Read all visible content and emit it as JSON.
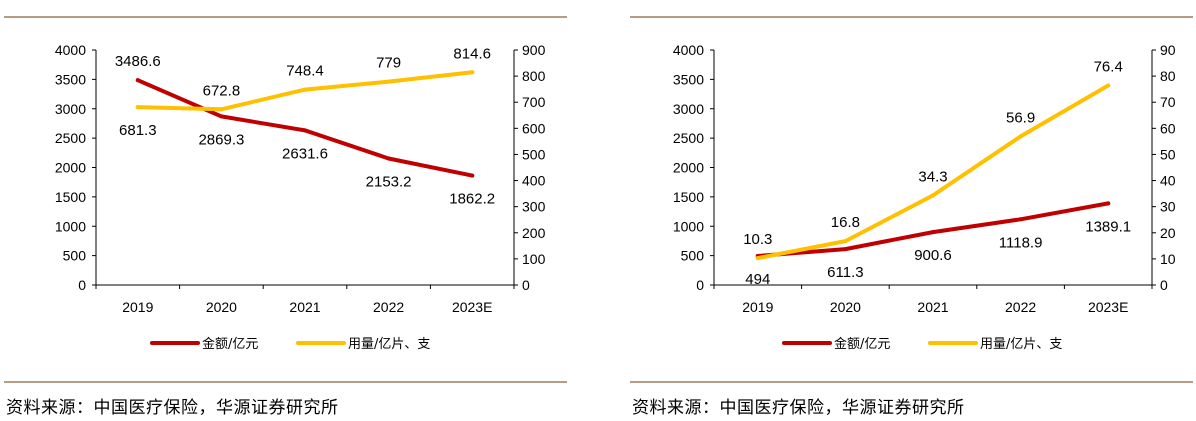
{
  "charts": [
    {
      "source": "资料来源：中国医疗保险，华源证券研究所",
      "chart_data": {
        "type": "line",
        "categories": [
          "2019",
          "2020",
          "2021",
          "2022",
          "2023E"
        ],
        "y_left_ticks": [
          "0",
          "500",
          "1000",
          "1500",
          "2000",
          "2500",
          "3000",
          "3500",
          "4000"
        ],
        "y_left_range": [
          0,
          4000
        ],
        "y_right_ticks": [
          "0",
          "100",
          "200",
          "300",
          "400",
          "500",
          "600",
          "700",
          "800",
          "900"
        ],
        "y_right_range": [
          0,
          900
        ],
        "grid": false,
        "legend_position": "bottom",
        "series": [
          {
            "name": "金额/亿元",
            "axis": "left",
            "color": "#c00000",
            "values": [
              3486.6,
              2869.3,
              2631.6,
              2153.2,
              1862.2
            ],
            "labels": [
              "3486.6",
              "2869.3",
              "2631.6",
              "2153.2",
              "1862.2"
            ],
            "label_side": [
              "above",
              "below",
              "below",
              "below",
              "below"
            ]
          },
          {
            "name": "用量/亿片、支",
            "axis": "right",
            "color": "#ffc000",
            "values": [
              681.3,
              672.8,
              748.4,
              779,
              814.6
            ],
            "labels": [
              "681.3",
              "672.8",
              "748.4",
              "779",
              "814.6"
            ],
            "label_side": [
              "below",
              "above",
              "above",
              "above",
              "above"
            ]
          }
        ]
      }
    },
    {
      "source": "资料来源：中国医疗保险，华源证券研究所",
      "chart_data": {
        "type": "line",
        "categories": [
          "2019",
          "2020",
          "2021",
          "2022",
          "2023E"
        ],
        "y_left_ticks": [
          "0",
          "500",
          "1000",
          "1500",
          "2000",
          "2500",
          "3000",
          "3500",
          "4000"
        ],
        "y_left_range": [
          0,
          4000
        ],
        "y_right_ticks": [
          "0",
          "10",
          "20",
          "30",
          "40",
          "50",
          "60",
          "70",
          "80",
          "90"
        ],
        "y_right_range": [
          0,
          90
        ],
        "grid": false,
        "legend_position": "bottom",
        "series": [
          {
            "name": "金额/亿元",
            "axis": "left",
            "color": "#c00000",
            "values": [
              494,
              611.3,
              900.6,
              1118.9,
              1389.1
            ],
            "labels": [
              "494",
              "611.3",
              "900.6",
              "1118.9",
              "1389.1"
            ],
            "label_side": [
              "below",
              "below",
              "below",
              "below",
              "below"
            ]
          },
          {
            "name": "用量/亿片、支",
            "axis": "right",
            "color": "#ffc000",
            "values": [
              10.3,
              16.8,
              34.3,
              56.9,
              76.4
            ],
            "labels": [
              "10.3",
              "16.8",
              "34.3",
              "56.9",
              "76.4"
            ],
            "label_side": [
              "above",
              "above",
              "above",
              "above",
              "above"
            ]
          }
        ]
      }
    }
  ]
}
